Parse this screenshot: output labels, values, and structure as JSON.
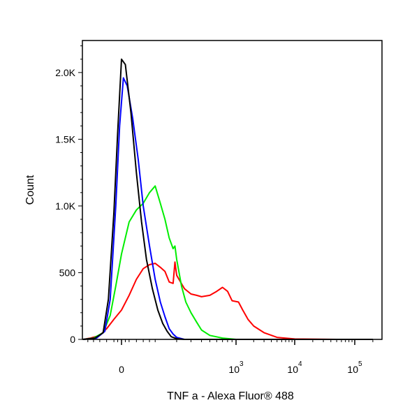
{
  "chart_data": {
    "type": "line",
    "title": "",
    "xlabel": "TNF a - Alexa Fluor® 488",
    "ylabel": "Count",
    "x_scale": "biexponential",
    "x_ticks": [
      {
        "value": 0,
        "base": "0",
        "exp": ""
      },
      {
        "value": 1000,
        "base": "10",
        "exp": "3"
      },
      {
        "value": 10000,
        "base": "10",
        "exp": "4"
      },
      {
        "value": 100000,
        "base": "10",
        "exp": "5"
      }
    ],
    "y_ticks": [
      {
        "value": 0,
        "label": "0"
      },
      {
        "value": 500,
        "label": "500"
      },
      {
        "value": 1000,
        "label": "1.0K"
      },
      {
        "value": 1500,
        "label": "1.5K"
      },
      {
        "value": 2000,
        "label": "2.0K"
      }
    ],
    "ylim": [
      0,
      2240
    ],
    "grid": false,
    "series": [
      {
        "color": "#ff0000",
        "points": [
          [
            -140,
            0
          ],
          [
            -90,
            10
          ],
          [
            -60,
            30
          ],
          [
            -40,
            80
          ],
          [
            -20,
            150
          ],
          [
            0,
            220
          ],
          [
            20,
            330
          ],
          [
            40,
            450
          ],
          [
            60,
            530
          ],
          [
            80,
            560
          ],
          [
            100,
            570
          ],
          [
            120,
            540
          ],
          [
            140,
            510
          ],
          [
            160,
            430
          ],
          [
            180,
            420
          ],
          [
            190,
            580
          ],
          [
            200,
            480
          ],
          [
            250,
            380
          ],
          [
            300,
            340
          ],
          [
            350,
            330
          ],
          [
            400,
            320
          ],
          [
            500,
            330
          ],
          [
            600,
            360
          ],
          [
            700,
            390
          ],
          [
            800,
            360
          ],
          [
            900,
            290
          ],
          [
            1100,
            280
          ],
          [
            1300,
            220
          ],
          [
            1600,
            150
          ],
          [
            2000,
            100
          ],
          [
            3000,
            50
          ],
          [
            5000,
            15
          ],
          [
            10000,
            3
          ],
          [
            50000,
            0
          ],
          [
            200000,
            0
          ]
        ]
      },
      {
        "color": "#00ee00",
        "points": [
          [
            -140,
            0
          ],
          [
            -80,
            10
          ],
          [
            -50,
            50
          ],
          [
            -30,
            180
          ],
          [
            -15,
            400
          ],
          [
            0,
            640
          ],
          [
            20,
            880
          ],
          [
            40,
            970
          ],
          [
            60,
            1020
          ],
          [
            80,
            1100
          ],
          [
            100,
            1150
          ],
          [
            120,
            1020
          ],
          [
            140,
            900
          ],
          [
            160,
            760
          ],
          [
            180,
            680
          ],
          [
            190,
            700
          ],
          [
            200,
            600
          ],
          [
            230,
            400
          ],
          [
            260,
            280
          ],
          [
            300,
            200
          ],
          [
            350,
            130
          ],
          [
            400,
            70
          ],
          [
            500,
            30
          ],
          [
            700,
            10
          ],
          [
            1000,
            0
          ],
          [
            200000,
            0
          ]
        ]
      },
      {
        "color": "#0000ff",
        "points": [
          [
            -140,
            0
          ],
          [
            -70,
            10
          ],
          [
            -45,
            60
          ],
          [
            -30,
            300
          ],
          [
            -15,
            1000
          ],
          [
            -5,
            1600
          ],
          [
            5,
            1960
          ],
          [
            15,
            1900
          ],
          [
            30,
            1650
          ],
          [
            45,
            1350
          ],
          [
            60,
            1000
          ],
          [
            80,
            700
          ],
          [
            100,
            450
          ],
          [
            120,
            280
          ],
          [
            140,
            170
          ],
          [
            160,
            80
          ],
          [
            180,
            40
          ],
          [
            200,
            15
          ],
          [
            250,
            0
          ],
          [
            200000,
            0
          ]
        ]
      },
      {
        "color": "#000000",
        "points": [
          [
            -140,
            0
          ],
          [
            -75,
            10
          ],
          [
            -50,
            50
          ],
          [
            -35,
            300
          ],
          [
            -20,
            950
          ],
          [
            -10,
            1550
          ],
          [
            0,
            2100
          ],
          [
            10,
            2060
          ],
          [
            25,
            1700
          ],
          [
            40,
            1250
          ],
          [
            55,
            880
          ],
          [
            70,
            600
          ],
          [
            90,
            380
          ],
          [
            110,
            220
          ],
          [
            130,
            120
          ],
          [
            150,
            60
          ],
          [
            170,
            20
          ],
          [
            200,
            5
          ],
          [
            250,
            0
          ],
          [
            200000,
            0
          ]
        ]
      }
    ]
  }
}
